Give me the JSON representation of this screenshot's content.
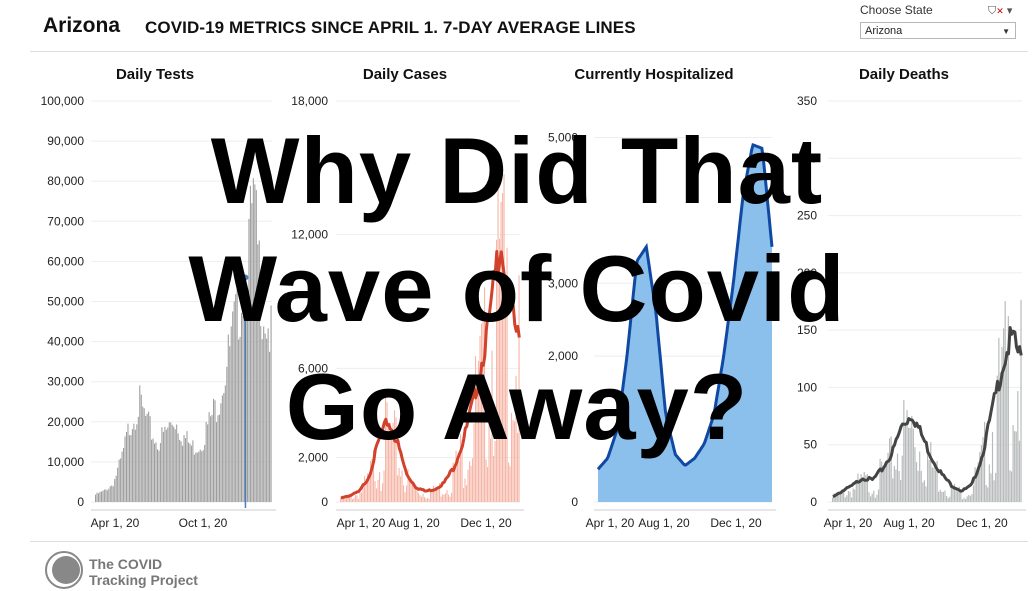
{
  "header": {
    "state": "Arizona",
    "subtitle": "COVID-19 METRICS SINCE APRIL 1. 7-DAY AVERAGE LINES"
  },
  "state_filter": {
    "label": "Choose State",
    "value": "Arizona",
    "filter_icon": "filter-clear-icon",
    "dropdown_icon": "chevron-down-icon"
  },
  "overlay": {
    "line1": "Why Did That",
    "line2": "Wave of Covid",
    "line3": "Go Away?"
  },
  "footer": {
    "logo_line1": "The COVID",
    "logo_line2": "Tracking Project",
    "logo_icon": "covid-tracking-project-logo"
  },
  "colors": {
    "tests": "#9e9e9e",
    "tests_line": "#4a7ebb",
    "cases_bar": "#f6b7a8",
    "cases_line": "#d1412b",
    "hosp_fill": "#8bbfec",
    "hosp_line": "#1049a3",
    "deaths_bar": "#b7bbbb",
    "deaths_line": "#444444"
  },
  "chart_data": [
    {
      "type": "bar",
      "title": "Daily Tests",
      "ylim": [
        0,
        100000
      ],
      "yticks": [
        0,
        10000,
        20000,
        30000,
        40000,
        50000,
        60000,
        70000,
        80000,
        90000,
        100000
      ],
      "ytick_labels": [
        "0",
        "10,000",
        "20,000",
        "30,000",
        "40,000",
        "50,000",
        "60,000",
        "70,000",
        "80,000",
        "90,000",
        "100,000"
      ],
      "xtick_labels": [
        "Apr 1, 20",
        "Oct 1, 20"
      ],
      "series": [
        {
          "values": [
            2000,
            3000,
            5000,
            12000,
            22000,
            27000,
            21000,
            16000,
            19000,
            23000,
            18000,
            15000,
            16000,
            22000,
            28000,
            38000,
            50000,
            62000,
            80000,
            55000,
            45000
          ]
        }
      ],
      "marker": {
        "value": 56000
      }
    },
    {
      "type": "bar",
      "title": "Daily Cases",
      "ylim": [
        0,
        18000
      ],
      "yticks": [
        0,
        2000,
        6000,
        12000,
        18000
      ],
      "ytick_labels": [
        "0",
        "2,000",
        "6,000",
        "12,000",
        "18,000"
      ],
      "xtick_labels": [
        "Apr 1, 20",
        "Aug 1, 20",
        "Dec 1, 20"
      ],
      "series": [
        {
          "values": [
            200,
            300,
            500,
            1200,
            2800,
            3800,
            2800,
            1300,
            700,
            500,
            600,
            900,
            1600,
            2800,
            4500,
            6500,
            9000,
            12500,
            9000,
            7500
          ]
        }
      ]
    },
    {
      "type": "area",
      "title": "Currently Hospitalized",
      "ylim": [
        0,
        5500
      ],
      "yticks": [
        0,
        2000,
        3000,
        5000
      ],
      "ytick_labels": [
        "0",
        "2,000",
        "3,000",
        "5,000"
      ],
      "xtick_labels": [
        "Apr 1, 20",
        "Aug 1, 20",
        "Dec 1, 20"
      ],
      "series": [
        {
          "values": [
            450,
            600,
            1000,
            2000,
            3300,
            3500,
            2600,
            1200,
            650,
            500,
            600,
            800,
            1200,
            2000,
            3000,
            4200,
            4900,
            4850,
            3500
          ]
        }
      ]
    },
    {
      "type": "bar",
      "title": "Daily Deaths",
      "ylim": [
        0,
        350
      ],
      "yticks": [
        0,
        50,
        100,
        150,
        200,
        250,
        300,
        350
      ],
      "ytick_labels": [
        "0",
        "50",
        "100",
        "150",
        "200",
        "250",
        "300",
        "350"
      ],
      "xtick_labels": [
        "Apr 1, 20",
        "Aug 1, 20",
        "Dec 1, 20"
      ],
      "series": [
        {
          "values": [
            5,
            10,
            15,
            22,
            20,
            30,
            45,
            70,
            80,
            60,
            40,
            25,
            15,
            10,
            15,
            40,
            80,
            120,
            150,
            130
          ]
        }
      ]
    }
  ]
}
